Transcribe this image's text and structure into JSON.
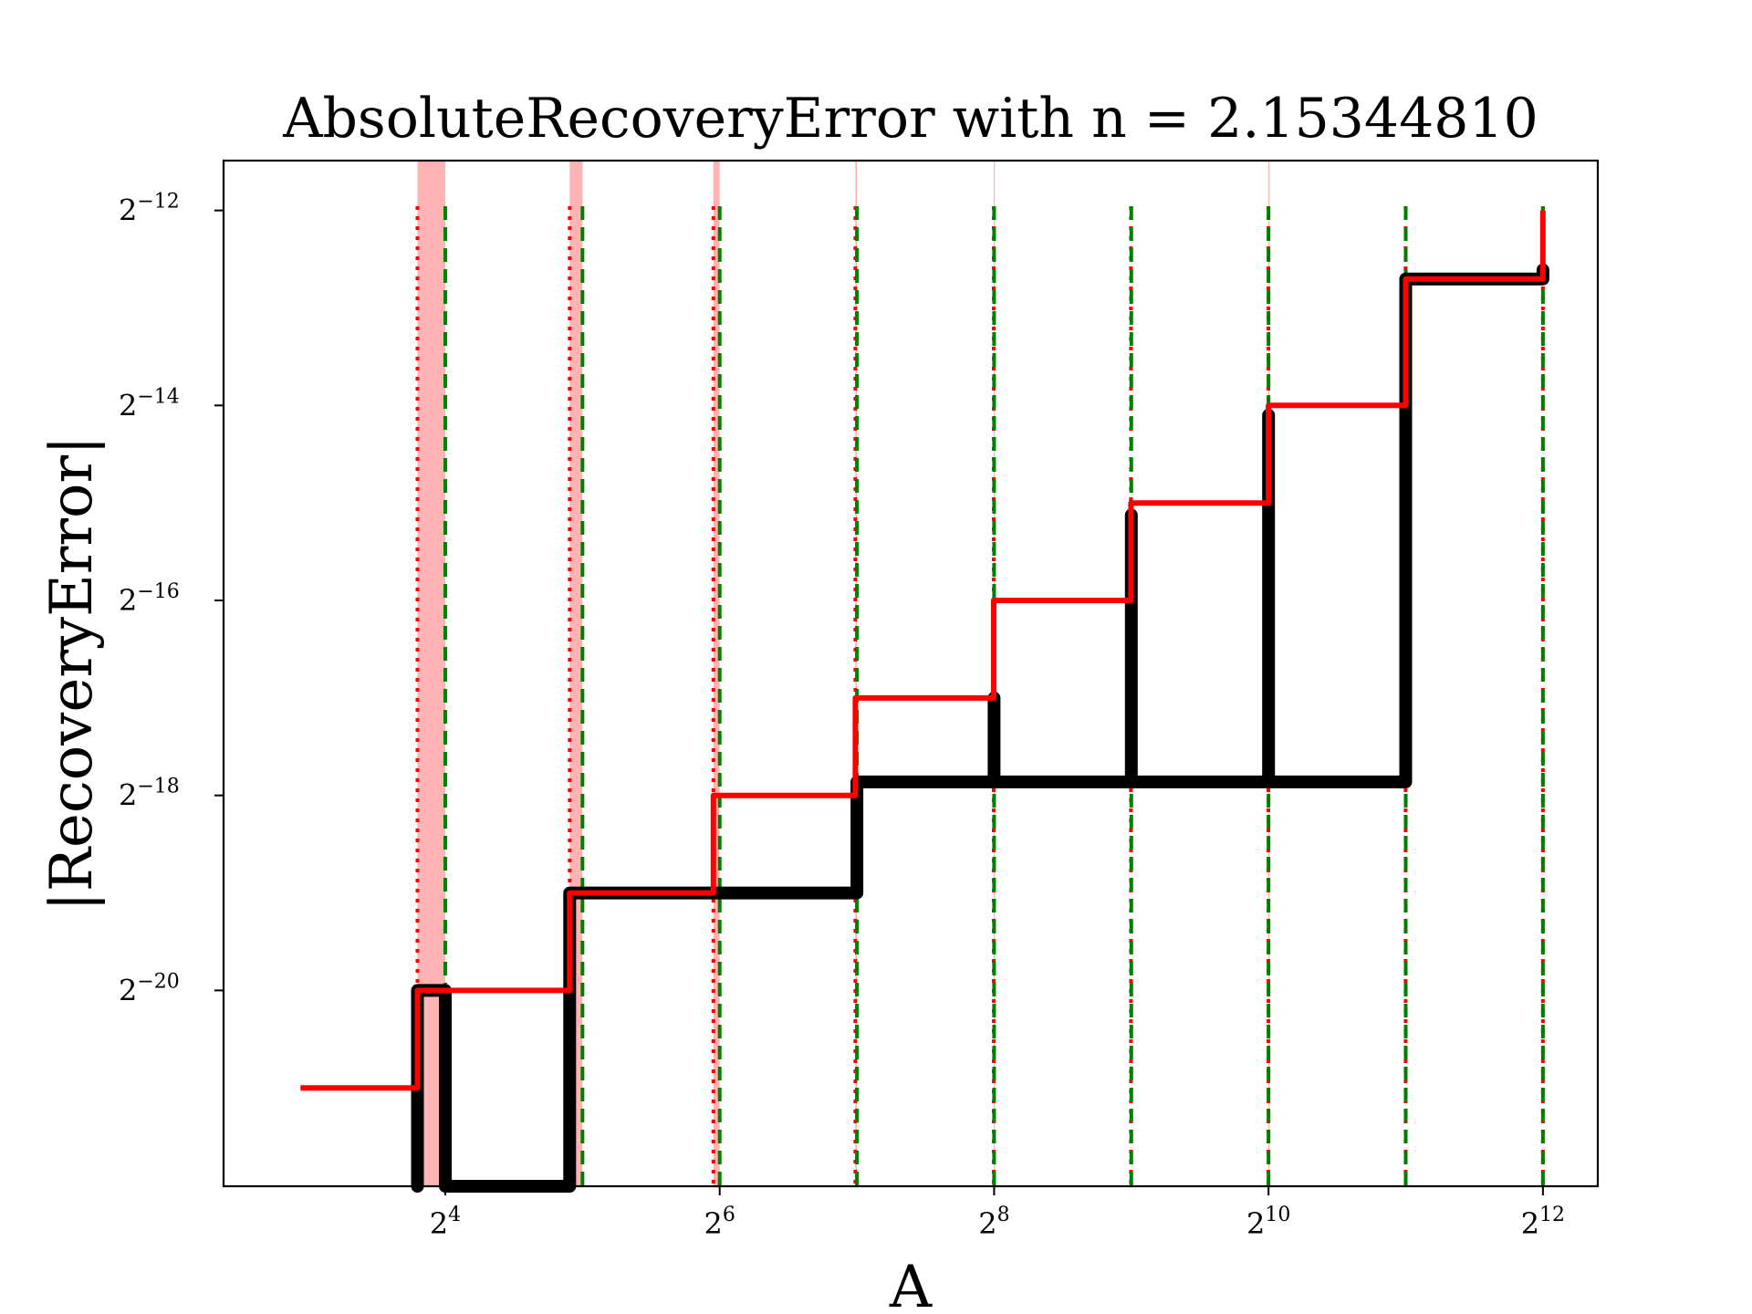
{
  "chart_data": {
    "type": "line",
    "title": "AbsoluteRecoveryError with n = 2.15344810",
    "xlabel": "A",
    "ylabel": "|RecoveryError|",
    "x_scale": "log2",
    "y_scale": "log2",
    "x_ticks": [
      {
        "base": "2",
        "exp": "4",
        "value": 16
      },
      {
        "base": "2",
        "exp": "6",
        "value": 64
      },
      {
        "base": "2",
        "exp": "8",
        "value": 256
      },
      {
        "base": "2",
        "exp": "10",
        "value": 1024
      },
      {
        "base": "2",
        "exp": "12",
        "value": 4096
      }
    ],
    "y_ticks": [
      {
        "base": "2",
        "exp": "−20",
        "value": 9.5367e-07
      },
      {
        "base": "2",
        "exp": "−18",
        "value": 3.8147e-06
      },
      {
        "base": "2",
        "exp": "−16",
        "value": 1.5259e-05
      },
      {
        "base": "2",
        "exp": "−14",
        "value": 6.1035e-05
      },
      {
        "base": "2",
        "exp": "−12",
        "value": 0.00024414
      }
    ],
    "xlim": [
      5.22,
      5404
    ],
    "ylim": [
      2.37e-07,
      0.000348
    ],
    "grid": false,
    "shaded_bands": [
      {
        "x0": 13.9,
        "x1": 16.0,
        "color": "#ffb3b3"
      },
      {
        "x0": 30.0,
        "x1": 32.0,
        "color": "#ffb3b3"
      },
      {
        "x0": 62.0,
        "x1": 64.0,
        "color": "#ffb3b3"
      },
      {
        "x0": 127.0,
        "x1": 128.0,
        "color": "#ffb3b3"
      },
      {
        "x0": 255.5,
        "x1": 256.0,
        "color": "#ffb3b3"
      },
      {
        "x0": 1023.5,
        "x1": 1024.0,
        "color": "#ffb3b3"
      }
    ],
    "red_dotted_verticals": [
      13.9,
      30.0,
      62.0,
      127.0,
      255.5,
      511.0,
      1023.5,
      2047.0,
      4095.0
    ],
    "green_dashed_verticals": [
      16,
      32,
      64,
      128,
      256,
      512,
      1024,
      2048,
      4096
    ],
    "series": [
      {
        "color": "#000000",
        "style": "thick-step",
        "points": [
          [
            13.9,
            2.37e-07
          ],
          [
            13.9,
            9.5367e-07
          ],
          [
            16.0,
            9.5367e-07
          ],
          [
            16.0,
            2.37e-07
          ],
          [
            30.0,
            2.37e-07
          ],
          [
            30.0,
            1.9073e-06
          ],
          [
            32.0,
            1.9073e-06
          ],
          [
            32.0,
            1.9073e-06
          ],
          [
            128,
            1.9073e-06
          ],
          [
            128,
            4.2e-06
          ],
          [
            128,
            4.2e-06
          ],
          [
            256,
            4.2e-06
          ],
          [
            256,
            7.6294e-06
          ],
          [
            256,
            4.2e-06
          ],
          [
            512,
            4.2e-06
          ],
          [
            512,
            2.8e-05
          ],
          [
            512,
            4.2e-06
          ],
          [
            1024,
            4.2e-06
          ],
          [
            1024,
            5.7e-05
          ],
          [
            1024,
            4.2e-06
          ],
          [
            2048,
            4.2e-06
          ],
          [
            2048,
            0.00015
          ],
          [
            4096,
            0.00015
          ],
          [
            4096,
            0.00016
          ]
        ]
      },
      {
        "color": "#ff0000",
        "style": "step",
        "points": [
          [
            7.7,
            4.7684e-07
          ],
          [
            13.9,
            4.7684e-07
          ],
          [
            13.9,
            9.5367e-07
          ],
          [
            30.0,
            9.5367e-07
          ],
          [
            30.0,
            1.9073e-06
          ],
          [
            62.0,
            1.9073e-06
          ],
          [
            62.0,
            3.8147e-06
          ],
          [
            127.0,
            3.8147e-06
          ],
          [
            127.0,
            7.6294e-06
          ],
          [
            255.5,
            7.6294e-06
          ],
          [
            255.5,
            1.5259e-05
          ],
          [
            511.0,
            1.5259e-05
          ],
          [
            511.0,
            3.0518e-05
          ],
          [
            1023.5,
            3.0518e-05
          ],
          [
            1023.5,
            6.1035e-05
          ],
          [
            2047.0,
            6.1035e-05
          ],
          [
            2047.0,
            0.00015
          ],
          [
            4095.0,
            0.00015
          ],
          [
            4095.0,
            0.00024414
          ]
        ]
      }
    ]
  }
}
